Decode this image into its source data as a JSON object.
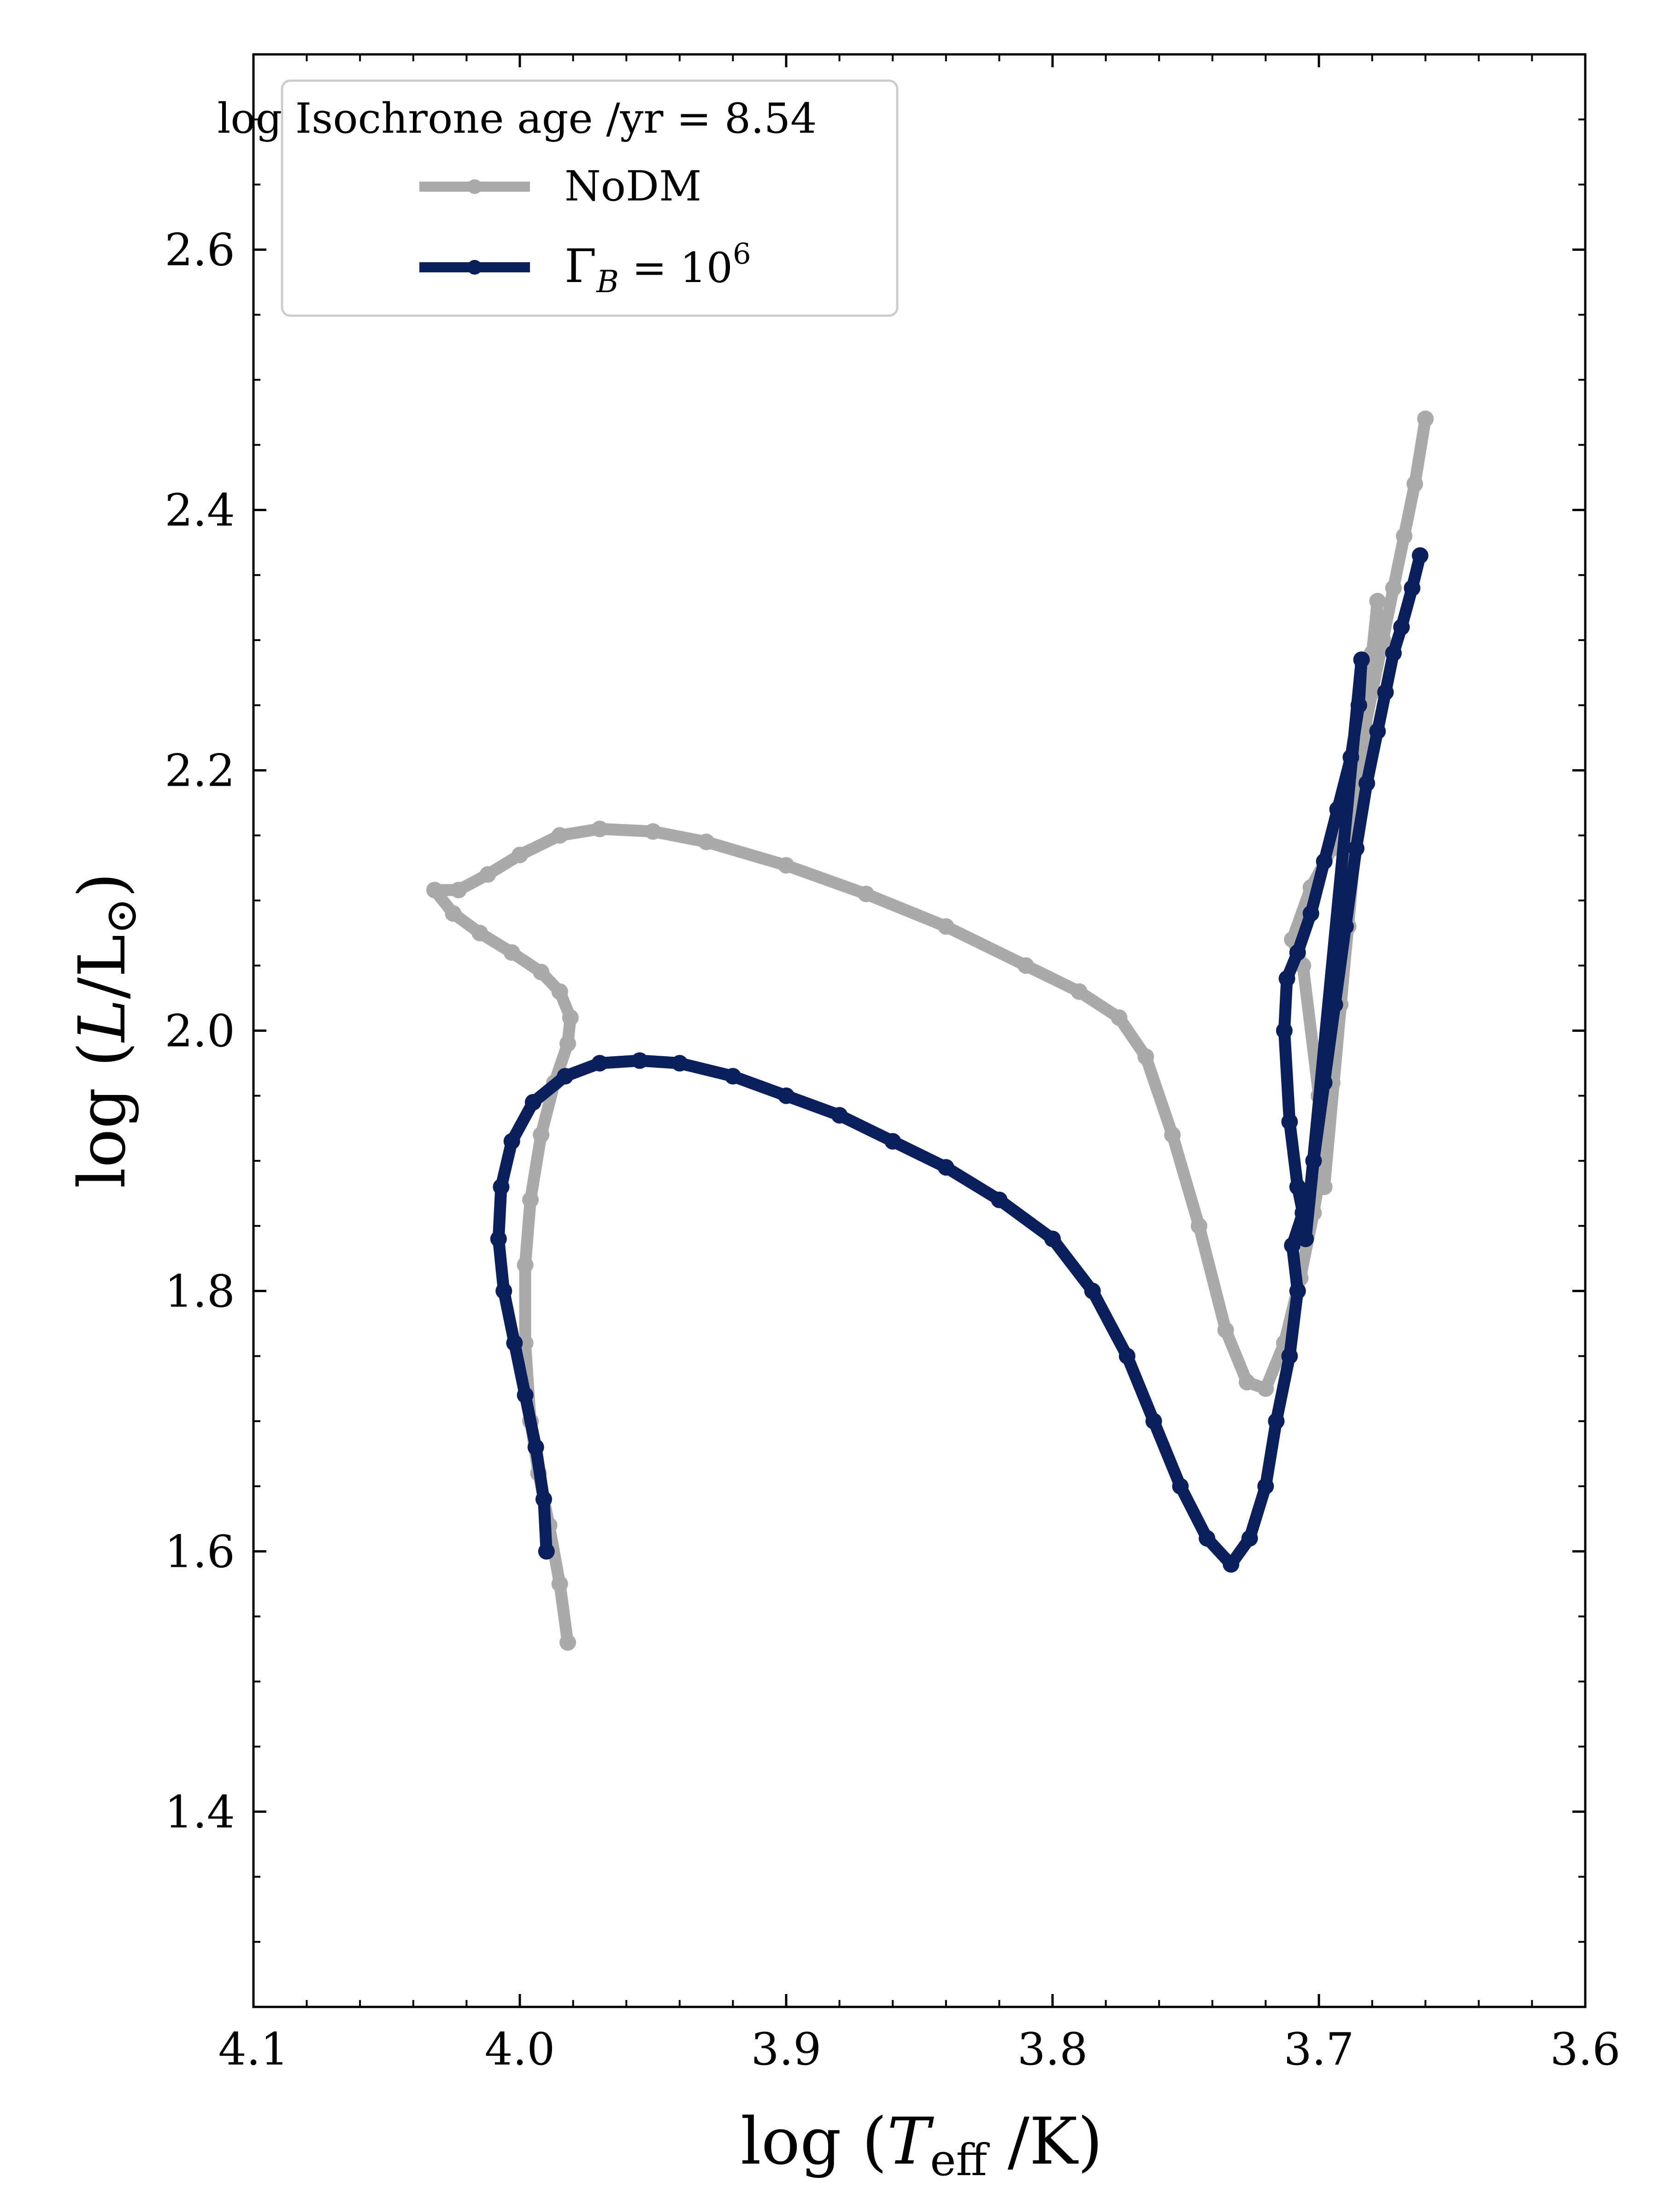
{
  "chart_data": {
    "type": "line",
    "title": "",
    "xlabel": "log (T_eff /K)",
    "ylabel": "log (L/L⊙)",
    "x_axis": {
      "range": [
        4.1,
        3.6
      ],
      "inverted": true,
      "major_ticks": [
        4.1,
        4.0,
        3.9,
        3.8,
        3.7,
        3.6
      ],
      "tick_labels": [
        "4.1",
        "4.0",
        "3.9",
        "3.8",
        "3.7",
        "3.6"
      ]
    },
    "y_axis": {
      "range": [
        1.25,
        2.75
      ],
      "major_ticks": [
        1.4,
        1.6,
        1.8,
        2.0,
        2.2,
        2.4,
        2.6
      ],
      "tick_labels": [
        "1.4",
        "1.6",
        "1.8",
        "2.0",
        "2.2",
        "2.4",
        "2.6"
      ]
    },
    "grid": false,
    "legend": {
      "position": "top-left",
      "title": "log Isochrone age /yr = 8.54"
    },
    "series": [
      {
        "name": "NoDM",
        "color": "#aaaaaa",
        "points": [
          [
            3.982,
            1.53
          ],
          [
            3.985,
            1.575
          ],
          [
            3.989,
            1.62
          ],
          [
            3.993,
            1.66
          ],
          [
            3.996,
            1.7
          ],
          [
            3.998,
            1.76
          ],
          [
            3.998,
            1.82
          ],
          [
            3.996,
            1.87
          ],
          [
            3.992,
            1.92
          ],
          [
            3.987,
            1.96
          ],
          [
            3.982,
            1.99
          ],
          [
            3.981,
            2.01
          ],
          [
            3.985,
            2.03
          ],
          [
            3.992,
            2.045
          ],
          [
            4.003,
            2.06
          ],
          [
            4.015,
            2.075
          ],
          [
            4.025,
            2.09
          ],
          [
            4.032,
            2.108
          ],
          [
            4.023,
            2.108
          ],
          [
            4.012,
            2.12
          ],
          [
            4.0,
            2.135
          ],
          [
            3.985,
            2.15
          ],
          [
            3.97,
            2.155
          ],
          [
            3.95,
            2.153
          ],
          [
            3.93,
            2.145
          ],
          [
            3.9,
            2.127
          ],
          [
            3.87,
            2.105
          ],
          [
            3.84,
            2.08
          ],
          [
            3.81,
            2.05
          ],
          [
            3.79,
            2.03
          ],
          [
            3.775,
            2.01
          ],
          [
            3.765,
            1.98
          ],
          [
            3.755,
            1.92
          ],
          [
            3.745,
            1.85
          ],
          [
            3.735,
            1.77
          ],
          [
            3.727,
            1.73
          ],
          [
            3.72,
            1.725
          ],
          [
            3.713,
            1.76
          ],
          [
            3.707,
            1.81
          ],
          [
            3.702,
            1.86
          ],
          [
            3.698,
            1.91
          ],
          [
            3.695,
            1.96
          ],
          [
            3.692,
            2.02
          ],
          [
            3.689,
            2.08
          ],
          [
            3.686,
            2.15
          ],
          [
            3.683,
            2.22
          ],
          [
            3.68,
            2.29
          ],
          [
            3.678,
            2.33
          ],
          [
            3.698,
            1.88
          ],
          [
            3.7,
            1.95
          ],
          [
            3.706,
            2.05
          ],
          [
            3.71,
            2.07
          ],
          [
            3.703,
            2.11
          ],
          [
            3.695,
            2.14
          ],
          [
            3.69,
            2.18
          ],
          [
            3.684,
            2.22
          ],
          [
            3.68,
            2.26
          ],
          [
            3.676,
            2.3
          ],
          [
            3.672,
            2.34
          ],
          [
            3.668,
            2.38
          ],
          [
            3.664,
            2.42
          ],
          [
            3.66,
            2.47
          ]
        ]
      },
      {
        "name": "Γ_B = 10^6",
        "color": "#0a1f5c",
        "points": [
          [
            3.99,
            1.6
          ],
          [
            3.991,
            1.64
          ],
          [
            3.994,
            1.68
          ],
          [
            3.998,
            1.72
          ],
          [
            4.002,
            1.76
          ],
          [
            4.006,
            1.8
          ],
          [
            4.008,
            1.84
          ],
          [
            4.007,
            1.88
          ],
          [
            4.003,
            1.915
          ],
          [
            3.995,
            1.945
          ],
          [
            3.983,
            1.965
          ],
          [
            3.97,
            1.975
          ],
          [
            3.955,
            1.977
          ],
          [
            3.94,
            1.975
          ],
          [
            3.92,
            1.965
          ],
          [
            3.9,
            1.95
          ],
          [
            3.88,
            1.935
          ],
          [
            3.86,
            1.915
          ],
          [
            3.84,
            1.895
          ],
          [
            3.82,
            1.87
          ],
          [
            3.8,
            1.84
          ],
          [
            3.785,
            1.8
          ],
          [
            3.772,
            1.75
          ],
          [
            3.762,
            1.7
          ],
          [
            3.752,
            1.65
          ],
          [
            3.742,
            1.61
          ],
          [
            3.733,
            1.59
          ],
          [
            3.726,
            1.61
          ],
          [
            3.72,
            1.65
          ],
          [
            3.716,
            1.7
          ],
          [
            3.711,
            1.75
          ],
          [
            3.708,
            1.8
          ],
          [
            3.71,
            1.835
          ],
          [
            3.706,
            1.86
          ],
          [
            3.708,
            1.88
          ],
          [
            3.711,
            1.93
          ],
          [
            3.713,
            2.0
          ],
          [
            3.712,
            2.04
          ],
          [
            3.708,
            2.06
          ],
          [
            3.703,
            2.09
          ],
          [
            3.698,
            2.13
          ],
          [
            3.693,
            2.17
          ],
          [
            3.688,
            2.21
          ],
          [
            3.685,
            2.25
          ],
          [
            3.684,
            2.285
          ],
          [
            3.705,
            1.84
          ],
          [
            3.702,
            1.9
          ],
          [
            3.698,
            1.96
          ],
          [
            3.694,
            2.02
          ],
          [
            3.69,
            2.08
          ],
          [
            3.686,
            2.14
          ],
          [
            3.682,
            2.19
          ],
          [
            3.678,
            2.23
          ],
          [
            3.675,
            2.26
          ],
          [
            3.672,
            2.29
          ],
          [
            3.669,
            2.31
          ],
          [
            3.665,
            2.34
          ],
          [
            3.662,
            2.365
          ]
        ]
      }
    ]
  }
}
